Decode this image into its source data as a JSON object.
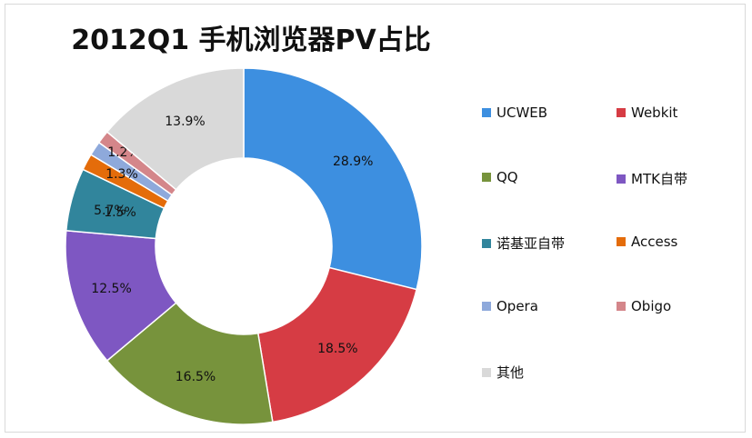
{
  "chart_data": {
    "type": "donut",
    "title": "2012Q1 手机浏览器PV占比",
    "legend_position": "right",
    "slices": [
      {
        "name": "UCWEB",
        "value": 28.9,
        "label": "28.9%",
        "color": "#3d8fe0"
      },
      {
        "name": "Webkit",
        "value": 18.5,
        "label": "18.5%",
        "color": "#d63c44"
      },
      {
        "name": "QQ",
        "value": 16.5,
        "label": "16.5%",
        "color": "#77933c"
      },
      {
        "name": "MTK自带",
        "value": 12.5,
        "label": "12.5%",
        "color": "#7e57c2"
      },
      {
        "name": "诺基亚自带",
        "value": 5.7,
        "label": "5.7%",
        "color": "#31859c"
      },
      {
        "name": "Access",
        "value": 1.5,
        "label": "1.5%",
        "color": "#e46c0a"
      },
      {
        "name": "Opera",
        "value": 1.3,
        "label": "1.3%",
        "color": "#8ea9db"
      },
      {
        "name": "Obigo",
        "value": 1.2,
        "label": "1.2%",
        "color": "#d4868a"
      },
      {
        "name": "其他",
        "value": 13.9,
        "label": "13.9%",
        "color": "#d9d9d9"
      }
    ]
  }
}
